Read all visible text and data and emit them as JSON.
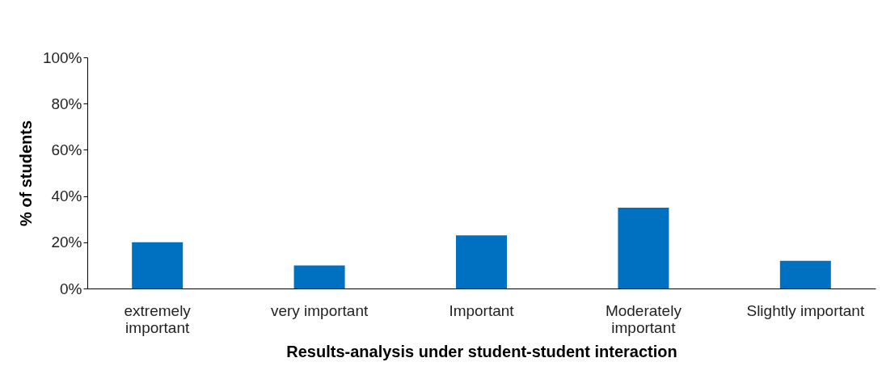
{
  "chart_data": {
    "type": "bar",
    "xlabel": "Results-analysis under student-student interaction",
    "ylabel": "% of students",
    "categories": [
      "extremely important",
      "very important",
      "Important",
      "Moderately important",
      "Slightly important"
    ],
    "values": [
      20,
      10,
      23,
      35,
      12
    ],
    "color": "#0070c0",
    "ylim": [
      0,
      100
    ],
    "yticks": [
      {
        "value": 0,
        "label": "0%"
      },
      {
        "value": 20,
        "label": "20%"
      },
      {
        "value": 40,
        "label": "40%"
      },
      {
        "value": 60,
        "label": "60%"
      },
      {
        "value": 80,
        "label": "80%"
      },
      {
        "value": 100,
        "label": "100%"
      }
    ],
    "grid": false
  }
}
